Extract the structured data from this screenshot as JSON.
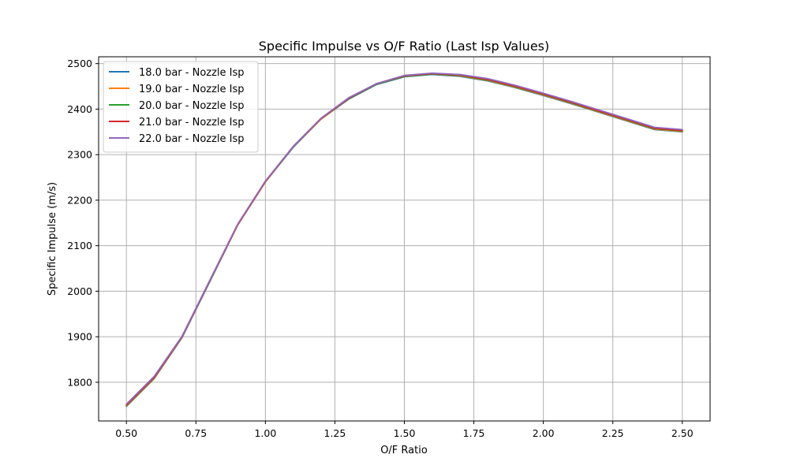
{
  "chart_data": {
    "type": "line",
    "title": "Specific Impulse vs O/F Ratio (Last Isp Values)",
    "xlabel": "O/F Ratio",
    "ylabel": "Specific Impulse (m/s)",
    "xlim": [
      0.4,
      2.6
    ],
    "ylim": [
      1715,
      2515
    ],
    "xticks": [
      0.5,
      0.75,
      1.0,
      1.25,
      1.5,
      1.75,
      2.0,
      2.25,
      2.5
    ],
    "xtick_labels": [
      "0.50",
      "0.75",
      "1.00",
      "1.25",
      "1.50",
      "1.75",
      "2.00",
      "2.25",
      "2.50"
    ],
    "yticks": [
      1800,
      1900,
      2000,
      2100,
      2200,
      2300,
      2400,
      2500
    ],
    "ytick_labels": [
      "1800",
      "1900",
      "2000",
      "2100",
      "2200",
      "2300",
      "2400",
      "2500"
    ],
    "grid": true,
    "legend_position": "top-left",
    "x": [
      0.5,
      0.6,
      0.7,
      0.8,
      0.9,
      1.0,
      1.1,
      1.2,
      1.3,
      1.4,
      1.5,
      1.6,
      1.7,
      1.8,
      1.9,
      2.0,
      2.1,
      2.2,
      2.3,
      2.4,
      2.5
    ],
    "series": [
      {
        "name": "18.0 bar - Nozzle Isp",
        "color": "#1f77b4",
        "values": [
          1747,
          1808,
          1898,
          2021,
          2145,
          2240,
          2316,
          2378,
          2422,
          2454,
          2471,
          2476,
          2472,
          2462,
          2447,
          2430,
          2412,
          2393,
          2374,
          2355,
          2350
        ]
      },
      {
        "name": "19.0 bar - Nozzle Isp",
        "color": "#ff7f0e",
        "values": [
          1748,
          1809,
          1899,
          2022,
          2145,
          2240,
          2317,
          2378,
          2423,
          2455,
          2472,
          2477,
          2473,
          2463,
          2448,
          2431,
          2413,
          2394,
          2375,
          2356,
          2351
        ]
      },
      {
        "name": "20.0 bar - Nozzle Isp",
        "color": "#2ca02c",
        "values": [
          1749,
          1810,
          1900,
          2022,
          2146,
          2241,
          2317,
          2379,
          2423,
          2455,
          2472,
          2477,
          2474,
          2464,
          2449,
          2432,
          2414,
          2395,
          2376,
          2357,
          2352
        ]
      },
      {
        "name": "21.0 bar - Nozzle Isp",
        "color": "#d62728",
        "values": [
          1750,
          1811,
          1900,
          2023,
          2146,
          2241,
          2318,
          2379,
          2424,
          2456,
          2473,
          2478,
          2475,
          2465,
          2450,
          2433,
          2415,
          2396,
          2377,
          2358,
          2353
        ]
      },
      {
        "name": "22.0 bar - Nozzle Isp",
        "color": "#9467bd",
        "values": [
          1752,
          1813,
          1901,
          2024,
          2147,
          2242,
          2318,
          2380,
          2425,
          2456,
          2474,
          2479,
          2476,
          2467,
          2452,
          2435,
          2417,
          2398,
          2379,
          2360,
          2355
        ]
      }
    ]
  }
}
